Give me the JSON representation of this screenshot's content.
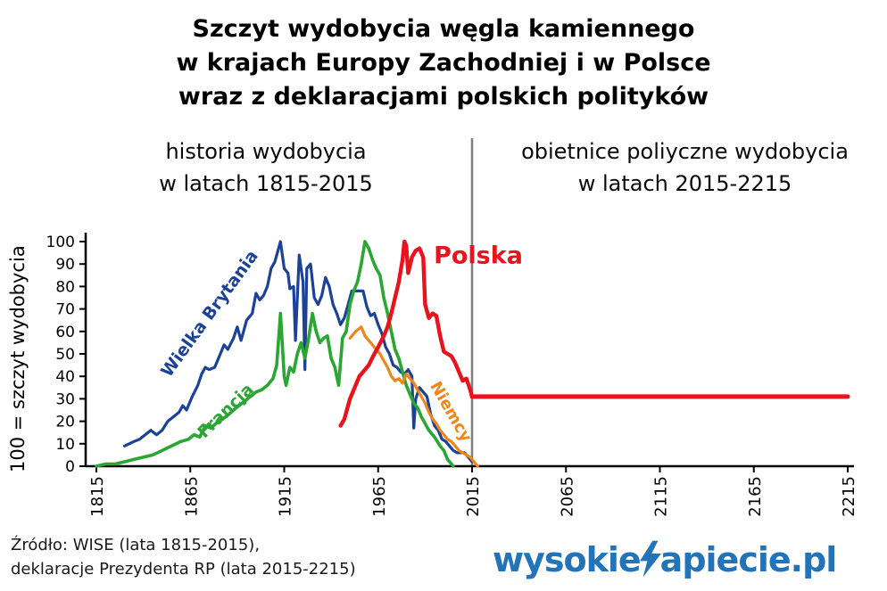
{
  "title": {
    "line1": "Szczyt wydobycia węgla kamiennego",
    "line2": "w krajach Europy Zachodniej i w Polsce",
    "line3": "wraz z deklaracjami polskich polityków"
  },
  "headers": {
    "left_line1": "historia wydobycia",
    "left_line2": "w latach 1815-2015",
    "right_line1": "obietnice poliyczne wydobycia",
    "right_line2": "w latach 2015-2215"
  },
  "source": {
    "line1": "Źródło: WISE (lata 1815-2015),",
    "line2": "deklaracje Prezydenta RP (lata 2015-2215)"
  },
  "watermark": {
    "prefix": "wysokie",
    "bolt_icon": "lightning-n-icon",
    "suffix": "apiecie.pl",
    "color": "#2273b8"
  },
  "chart_data": {
    "type": "line",
    "title": "Szczyt wydobycia węgla kamiennego w krajach Europy Zachodniej i w Polsce wraz z deklaracjami polskich polityków",
    "xlabel": "",
    "ylabel": "100 = szczyt wydobycia",
    "xlim": [
      1815,
      2215
    ],
    "ylim": [
      0,
      100
    ],
    "x_ticks": [
      1815,
      1865,
      1915,
      1965,
      2015,
      2065,
      2115,
      2165,
      2215
    ],
    "y_ticks": [
      0,
      10,
      20,
      30,
      40,
      50,
      60,
      70,
      80,
      90,
      100
    ],
    "grid": false,
    "legend_position": "inline-labels",
    "divider_year": 2015,
    "divider_color": "#7f7f7f",
    "series": [
      {
        "name": "Wielka Brytania",
        "color": "#1b4298",
        "points": [
          [
            1830,
            9
          ],
          [
            1835,
            11
          ],
          [
            1838,
            12
          ],
          [
            1841,
            14
          ],
          [
            1844,
            16
          ],
          [
            1847,
            14
          ],
          [
            1850,
            16
          ],
          [
            1853,
            20
          ],
          [
            1856,
            22
          ],
          [
            1859,
            24
          ],
          [
            1861,
            27
          ],
          [
            1863,
            25
          ],
          [
            1866,
            31
          ],
          [
            1869,
            36
          ],
          [
            1871,
            41
          ],
          [
            1873,
            44
          ],
          [
            1875,
            43
          ],
          [
            1878,
            44
          ],
          [
            1881,
            50
          ],
          [
            1883,
            54
          ],
          [
            1885,
            52
          ],
          [
            1888,
            57
          ],
          [
            1890,
            62
          ],
          [
            1892,
            56
          ],
          [
            1895,
            65
          ],
          [
            1898,
            68
          ],
          [
            1900,
            77
          ],
          [
            1902,
            74
          ],
          [
            1904,
            76
          ],
          [
            1906,
            80
          ],
          [
            1908,
            88
          ],
          [
            1910,
            91
          ],
          [
            1913,
            100
          ],
          [
            1915,
            88
          ],
          [
            1917,
            86
          ],
          [
            1918,
            79
          ],
          [
            1920,
            80
          ],
          [
            1921,
            56
          ],
          [
            1923,
            94
          ],
          [
            1925,
            82
          ],
          [
            1926,
            43
          ],
          [
            1927,
            88
          ],
          [
            1929,
            90
          ],
          [
            1931,
            75
          ],
          [
            1933,
            72
          ],
          [
            1935,
            76
          ],
          [
            1937,
            84
          ],
          [
            1939,
            80
          ],
          [
            1941,
            72
          ],
          [
            1943,
            68
          ],
          [
            1945,
            63
          ],
          [
            1947,
            66
          ],
          [
            1949,
            72
          ],
          [
            1951,
            78
          ],
          [
            1954,
            78
          ],
          [
            1957,
            78
          ],
          [
            1959,
            71
          ],
          [
            1961,
            67
          ],
          [
            1963,
            68
          ],
          [
            1965,
            63
          ],
          [
            1967,
            59
          ],
          [
            1969,
            53
          ],
          [
            1971,
            50
          ],
          [
            1973,
            45
          ],
          [
            1975,
            44
          ],
          [
            1977,
            42
          ],
          [
            1979,
            41
          ],
          [
            1981,
            43
          ],
          [
            1983,
            40
          ],
          [
            1984,
            17
          ],
          [
            1985,
            30
          ],
          [
            1987,
            35
          ],
          [
            1989,
            33
          ],
          [
            1991,
            31
          ],
          [
            1993,
            23
          ],
          [
            1995,
            18
          ],
          [
            1997,
            16
          ],
          [
            1999,
            12
          ],
          [
            2001,
            11
          ],
          [
            2003,
            9
          ],
          [
            2005,
            7
          ],
          [
            2007,
            6
          ],
          [
            2009,
            6
          ],
          [
            2011,
            6
          ],
          [
            2013,
            4
          ],
          [
            2015,
            2
          ]
        ]
      },
      {
        "name": "Francja",
        "color": "#2aa632",
        "points": [
          [
            1815,
            0
          ],
          [
            1820,
            1
          ],
          [
            1825,
            1
          ],
          [
            1830,
            2
          ],
          [
            1835,
            3
          ],
          [
            1840,
            4
          ],
          [
            1845,
            5
          ],
          [
            1850,
            7
          ],
          [
            1855,
            9
          ],
          [
            1860,
            11
          ],
          [
            1864,
            12
          ],
          [
            1867,
            14
          ],
          [
            1870,
            13
          ],
          [
            1873,
            18
          ],
          [
            1876,
            17
          ],
          [
            1880,
            20
          ],
          [
            1884,
            22
          ],
          [
            1888,
            25
          ],
          [
            1891,
            27
          ],
          [
            1894,
            29
          ],
          [
            1897,
            31
          ],
          [
            1900,
            33
          ],
          [
            1903,
            34
          ],
          [
            1906,
            36
          ],
          [
            1909,
            39
          ],
          [
            1911,
            45
          ],
          [
            1913,
            68
          ],
          [
            1915,
            40
          ],
          [
            1916,
            36
          ],
          [
            1918,
            44
          ],
          [
            1920,
            42
          ],
          [
            1922,
            50
          ],
          [
            1924,
            55
          ],
          [
            1926,
            48
          ],
          [
            1928,
            57
          ],
          [
            1930,
            68
          ],
          [
            1932,
            60
          ],
          [
            1934,
            55
          ],
          [
            1936,
            57
          ],
          [
            1938,
            58
          ],
          [
            1940,
            48
          ],
          [
            1942,
            44
          ],
          [
            1944,
            36
          ],
          [
            1946,
            57
          ],
          [
            1948,
            60
          ],
          [
            1950,
            72
          ],
          [
            1952,
            78
          ],
          [
            1954,
            82
          ],
          [
            1956,
            90
          ],
          [
            1958,
            100
          ],
          [
            1960,
            97
          ],
          [
            1962,
            92
          ],
          [
            1964,
            88
          ],
          [
            1966,
            85
          ],
          [
            1968,
            75
          ],
          [
            1970,
            68
          ],
          [
            1972,
            60
          ],
          [
            1974,
            52
          ],
          [
            1976,
            48
          ],
          [
            1978,
            42
          ],
          [
            1980,
            36
          ],
          [
            1982,
            32
          ],
          [
            1984,
            28
          ],
          [
            1986,
            26
          ],
          [
            1988,
            22
          ],
          [
            1990,
            19
          ],
          [
            1992,
            16
          ],
          [
            1995,
            13
          ],
          [
            1998,
            9
          ],
          [
            2000,
            7
          ],
          [
            2002,
            3
          ],
          [
            2005,
            0
          ]
        ]
      },
      {
        "name": "Niemcy",
        "color": "#f08519",
        "points": [
          [
            1950,
            57
          ],
          [
            1953,
            60
          ],
          [
            1956,
            62
          ],
          [
            1958,
            58
          ],
          [
            1960,
            56
          ],
          [
            1962,
            54
          ],
          [
            1964,
            52
          ],
          [
            1966,
            50
          ],
          [
            1968,
            47
          ],
          [
            1970,
            44
          ],
          [
            1972,
            40
          ],
          [
            1974,
            38
          ],
          [
            1976,
            39
          ],
          [
            1978,
            37
          ],
          [
            1980,
            41
          ],
          [
            1982,
            39
          ],
          [
            1984,
            37
          ],
          [
            1986,
            34
          ],
          [
            1988,
            31
          ],
          [
            1990,
            28
          ],
          [
            1992,
            24
          ],
          [
            1994,
            21
          ],
          [
            1996,
            19
          ],
          [
            1998,
            16
          ],
          [
            2000,
            14
          ],
          [
            2002,
            12
          ],
          [
            2004,
            11
          ],
          [
            2006,
            9
          ],
          [
            2008,
            7
          ],
          [
            2010,
            6
          ],
          [
            2012,
            5
          ],
          [
            2014,
            4
          ],
          [
            2016,
            2
          ],
          [
            2018,
            0
          ]
        ]
      },
      {
        "name": "Polska",
        "color": "#e8131d",
        "points": [
          [
            1945,
            18
          ],
          [
            1947,
            21
          ],
          [
            1950,
            30
          ],
          [
            1953,
            36
          ],
          [
            1955,
            40
          ],
          [
            1957,
            42
          ],
          [
            1960,
            45
          ],
          [
            1963,
            50
          ],
          [
            1965,
            53
          ],
          [
            1968,
            58
          ],
          [
            1970,
            62
          ],
          [
            1972,
            68
          ],
          [
            1974,
            75
          ],
          [
            1976,
            82
          ],
          [
            1978,
            92
          ],
          [
            1979,
            100
          ],
          [
            1980,
            98
          ],
          [
            1981,
            86
          ],
          [
            1983,
            93
          ],
          [
            1985,
            96
          ],
          [
            1987,
            97
          ],
          [
            1989,
            93
          ],
          [
            1990,
            72
          ],
          [
            1992,
            66
          ],
          [
            1994,
            68
          ],
          [
            1996,
            67
          ],
          [
            1998,
            58
          ],
          [
            2000,
            51
          ],
          [
            2002,
            50
          ],
          [
            2004,
            49
          ],
          [
            2006,
            46
          ],
          [
            2008,
            42
          ],
          [
            2010,
            38
          ],
          [
            2012,
            39
          ],
          [
            2014,
            34
          ],
          [
            2015,
            31
          ]
        ],
        "promise_points": [
          [
            2015,
            31
          ],
          [
            2215,
            31
          ]
        ]
      }
    ]
  }
}
